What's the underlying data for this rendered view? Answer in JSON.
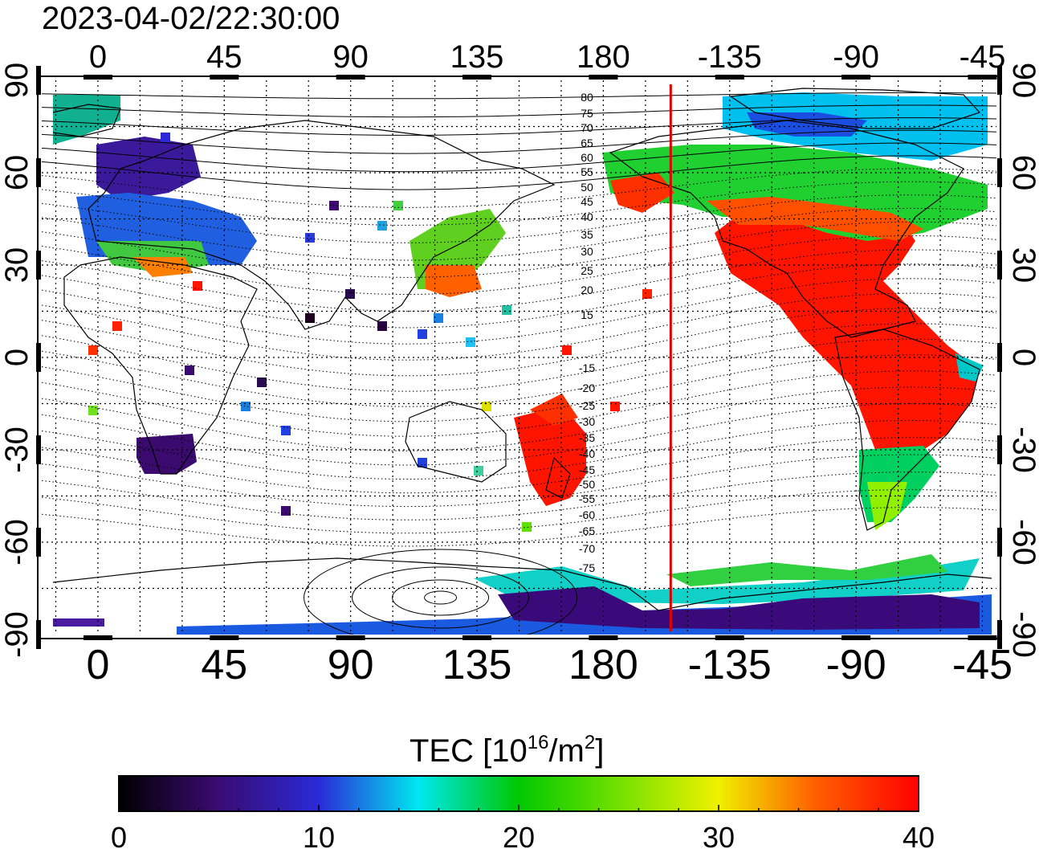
{
  "title": "2023-04-02/22:30:00",
  "axes": {
    "lon_ticks": [
      "0",
      "45",
      "90",
      "135",
      "180",
      "-135",
      "-90",
      "-45"
    ],
    "lat_ticks": [
      "90",
      "60",
      "30",
      "0",
      "-30",
      "-60",
      "-90"
    ]
  },
  "contour_labels": {
    "north": [
      "80",
      "75",
      "70",
      "65",
      "60",
      "55",
      "50",
      "45",
      "40",
      "35",
      "30",
      "25",
      "20",
      "15"
    ],
    "south": [
      "-15",
      "-20",
      "-25",
      "-30",
      "-35",
      "-40",
      "-45",
      "-50",
      "-55",
      "-60",
      "-65",
      "-70",
      "-75"
    ]
  },
  "colorbar": {
    "label_main": "TEC  [10",
    "label_sup1": "16",
    "label_mid": "/m",
    "label_sup2": "2",
    "label_end": "]",
    "ticks": [
      "0",
      "10",
      "20",
      "30",
      "40"
    ],
    "range": [
      0,
      40
    ],
    "colors": [
      "#000000",
      "#3a0a6e",
      "#2a2ad8",
      "#00e8f0",
      "#00c800",
      "#f0f000",
      "#ff6000",
      "#ff0000"
    ]
  },
  "terminator_lon": -156,
  "map_extent": {
    "lon": [
      -20,
      320
    ],
    "lat": [
      -90,
      90
    ]
  }
}
